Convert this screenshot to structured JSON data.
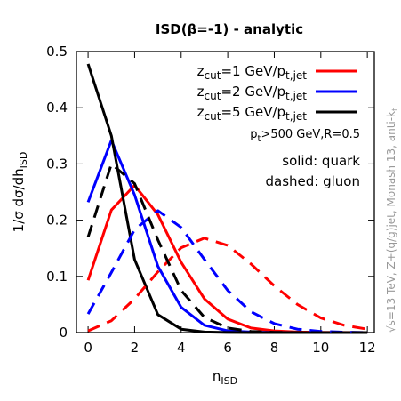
{
  "chart_data": {
    "type": "line",
    "title": "ISD(β=-1) - analytic",
    "xlabel": "n_ISD",
    "ylabel": "1/σ dσ/dh_ISD",
    "xlim": [
      -0.5,
      12.3
    ],
    "ylim": [
      0,
      0.5
    ],
    "xticks": [
      0,
      2,
      4,
      6,
      8,
      10,
      12
    ],
    "yticks": [
      0,
      0.1,
      0.2,
      0.3,
      0.4,
      0.5
    ],
    "annotations": {
      "cuts": "p_t>500 GeV,R=0.5",
      "solid": "solid: quark",
      "dashed": "dashed: gluon",
      "side": "√s=13 TeV, Z+(q/g)jet, Monash 13, anti-k_t"
    },
    "series": [
      {
        "name": "z_cut=1 GeV/p_t,jet",
        "style": "solid",
        "color": "#ff0000",
        "x": [
          0,
          1,
          2,
          3,
          4,
          5,
          6,
          7,
          8,
          9,
          10,
          11,
          12
        ],
        "y": [
          0.093,
          0.218,
          0.262,
          0.21,
          0.125,
          0.06,
          0.024,
          0.008,
          0.003,
          0.001,
          0.0003,
          0.0001,
          0.0
        ]
      },
      {
        "name": "z_cut=2 GeV/p_t,jet",
        "style": "solid",
        "color": "#0000ff",
        "x": [
          0,
          1,
          2,
          3,
          4,
          5,
          6,
          7,
          8,
          9,
          10,
          11,
          12
        ],
        "y": [
          0.232,
          0.342,
          0.245,
          0.118,
          0.045,
          0.013,
          0.003,
          0.001,
          0.0002,
          0.0,
          0.0,
          0.0,
          0.0
        ]
      },
      {
        "name": "z_cut=5 GeV/p_t,jet",
        "style": "solid",
        "color": "#000000",
        "x": [
          0,
          1,
          2,
          3,
          4,
          5,
          6,
          7,
          8,
          9,
          10,
          11,
          12
        ],
        "y": [
          0.478,
          0.35,
          0.13,
          0.032,
          0.006,
          0.001,
          0.0002,
          0.0,
          0.0,
          0.0,
          0.0,
          0.0,
          0.0
        ]
      },
      {
        "style": "dashed",
        "color": "#ff0000",
        "x": [
          0,
          1,
          2,
          3,
          4,
          5,
          6,
          7,
          8,
          9,
          10,
          11,
          12
        ],
        "y": [
          0.003,
          0.021,
          0.06,
          0.108,
          0.151,
          0.168,
          0.155,
          0.122,
          0.083,
          0.05,
          0.026,
          0.013,
          0.006
        ]
      },
      {
        "style": "dashed",
        "color": "#0000ff",
        "x": [
          0,
          1,
          2,
          3,
          4,
          5,
          6,
          7,
          8,
          9,
          10,
          11,
          12
        ],
        "y": [
          0.033,
          0.107,
          0.183,
          0.217,
          0.187,
          0.13,
          0.075,
          0.037,
          0.016,
          0.006,
          0.002,
          0.0007,
          0.0002
        ]
      },
      {
        "style": "dashed",
        "color": "#000000",
        "x": [
          0,
          1,
          2,
          3,
          4,
          5,
          6,
          7,
          8,
          9,
          10,
          11,
          12
        ],
        "y": [
          0.17,
          0.3,
          0.265,
          0.165,
          0.075,
          0.027,
          0.008,
          0.002,
          0.0005,
          0.0001,
          0.0,
          0.0,
          0.0
        ]
      }
    ]
  }
}
